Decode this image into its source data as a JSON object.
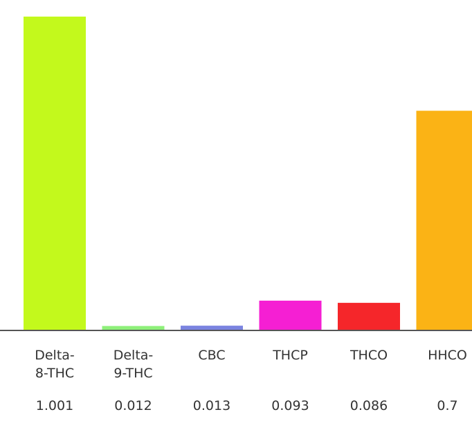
{
  "chart_data": {
    "type": "bar",
    "categories": [
      [
        "Delta-",
        "8-THC"
      ],
      [
        "Delta-",
        "9-THC"
      ],
      [
        "CBC"
      ],
      [
        "THCP"
      ],
      [
        "THCO"
      ],
      [
        "HHCO"
      ]
    ],
    "values": [
      1.001,
      0.012,
      0.013,
      0.093,
      0.086,
      0.7
    ],
    "value_labels": [
      "1.001",
      "0.012",
      "0.013",
      "0.093",
      "0.086",
      "0.7"
    ],
    "colors": [
      "#c3f91c",
      "#8ef07a",
      "#7b84e0",
      "#f51fd3",
      "#f5262a",
      "#fbb315"
    ],
    "axis_color": "#555555",
    "title": "",
    "xlabel": "",
    "ylabel": "",
    "ylim": [
      0,
      1.001
    ]
  }
}
